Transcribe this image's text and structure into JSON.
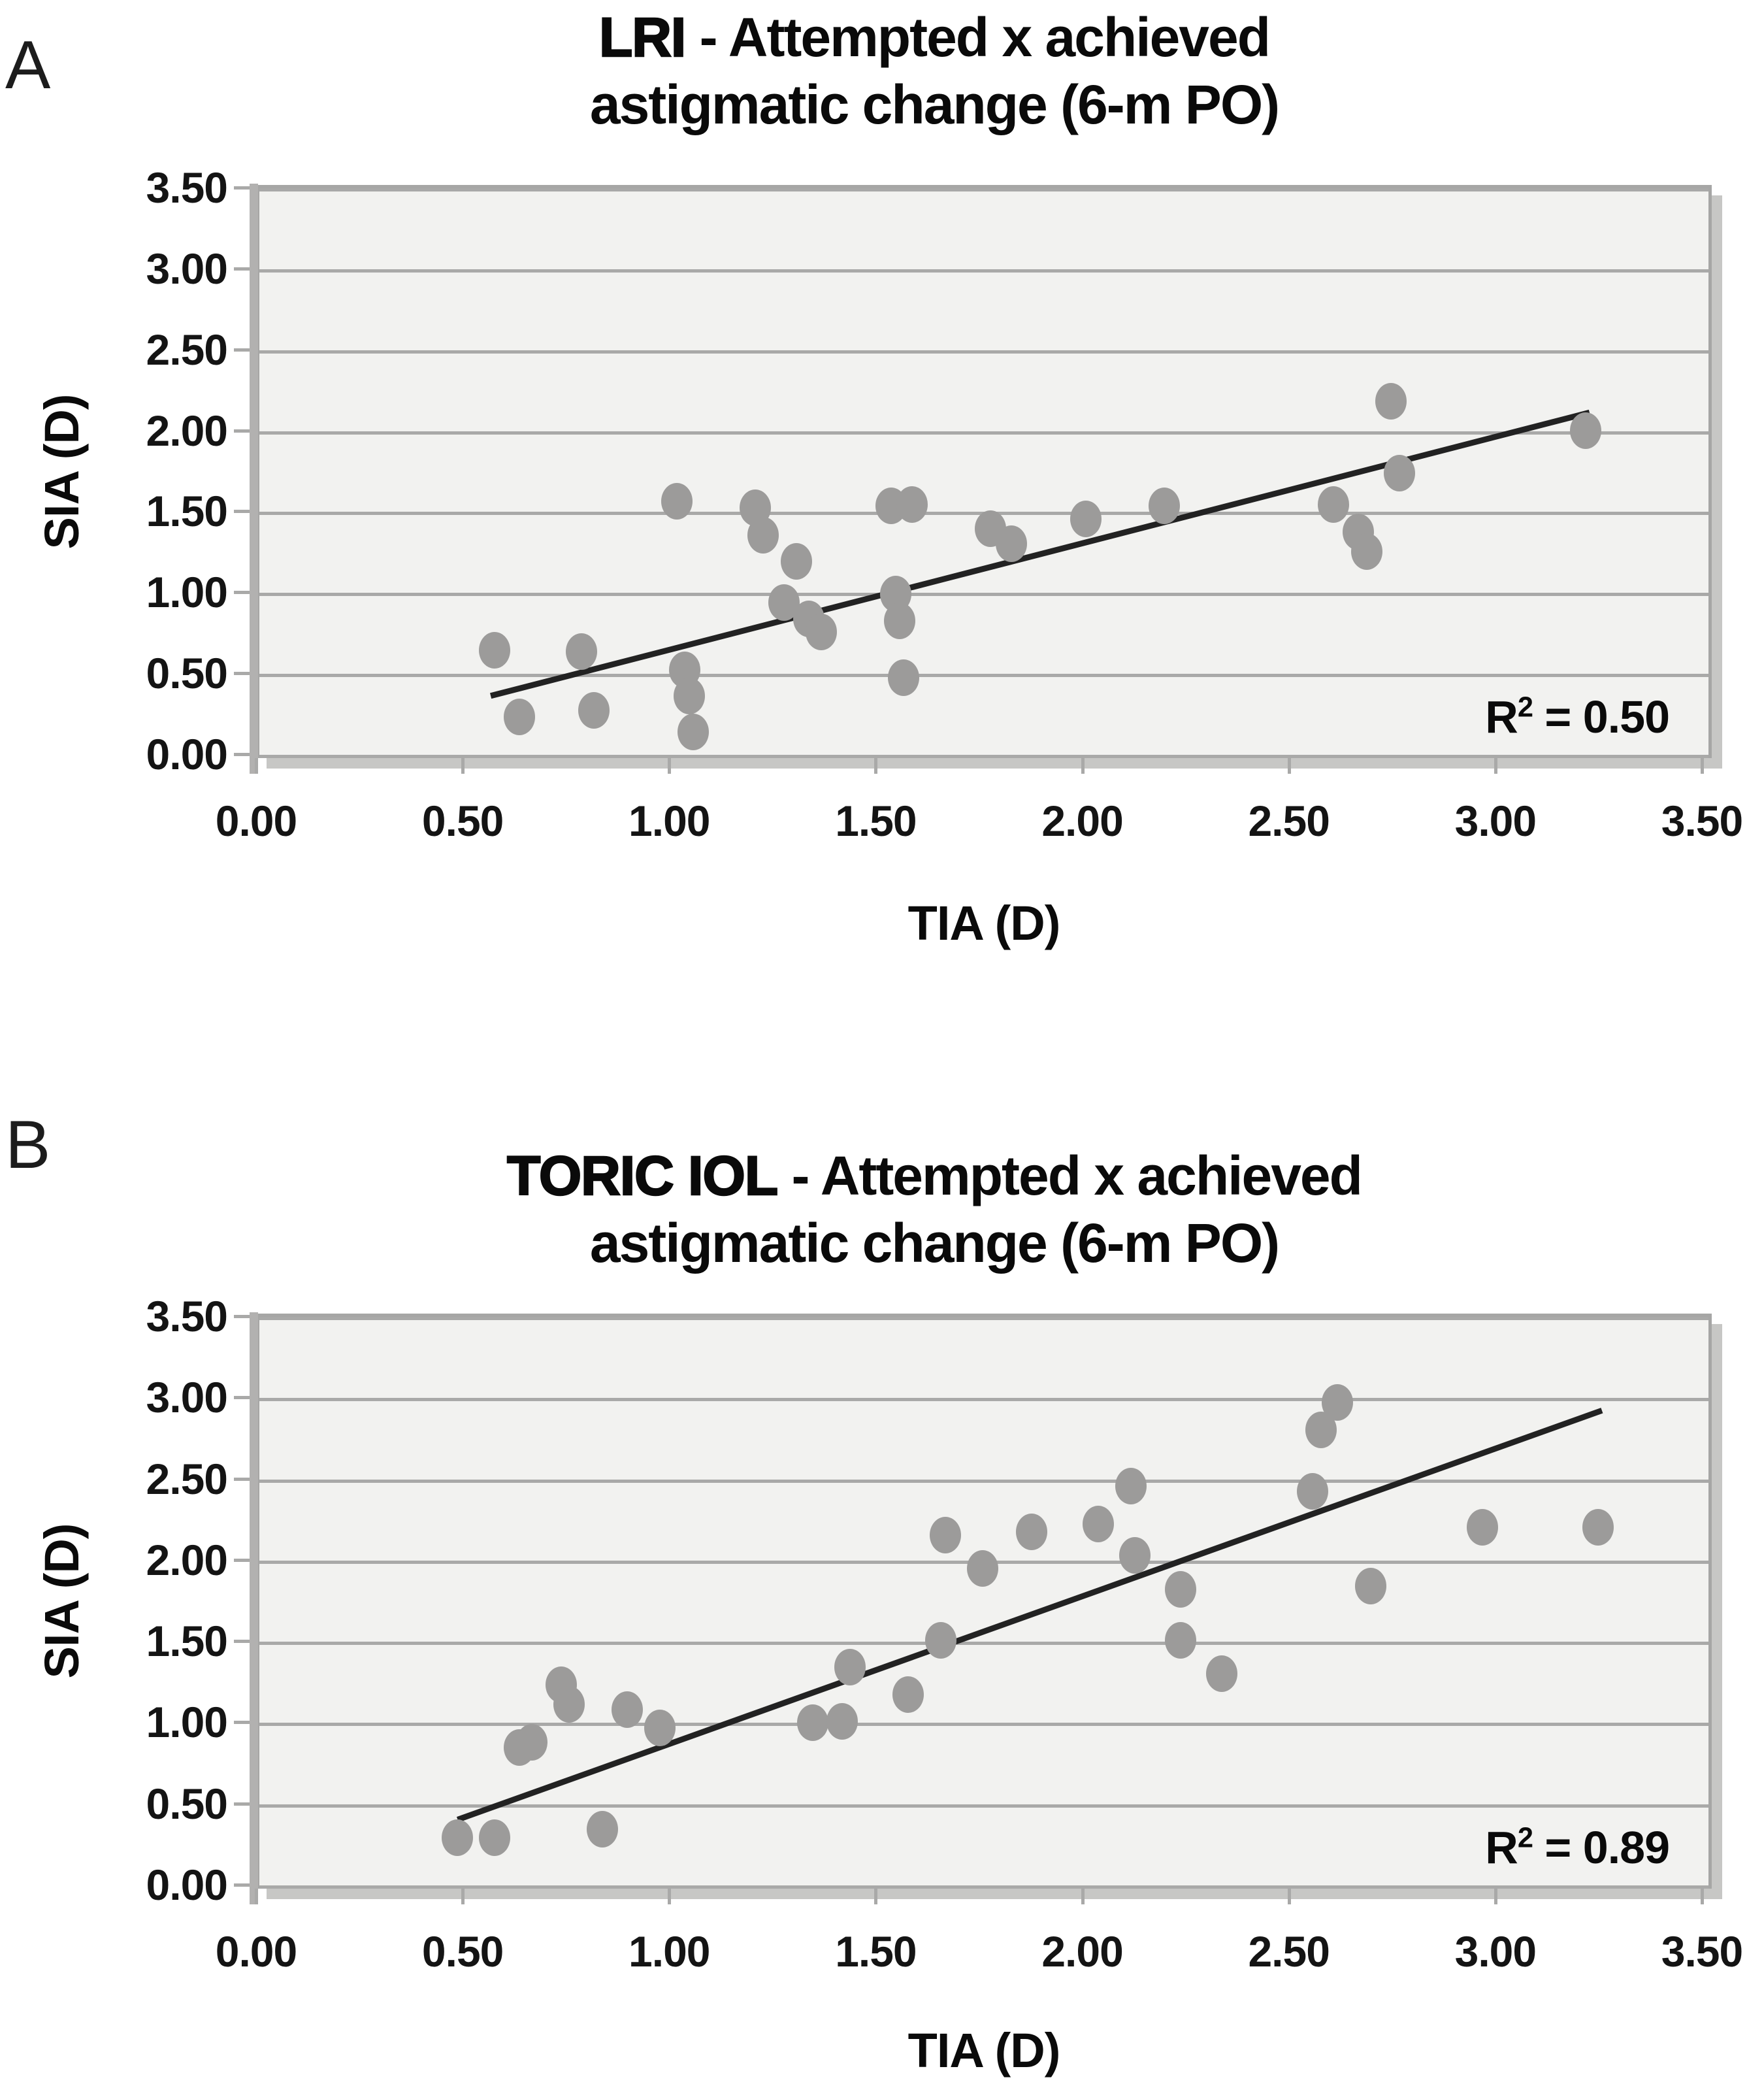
{
  "figure": {
    "panels": [
      {
        "panel_letter": "A",
        "title_strong": "LRI",
        "title_rest": " - Attempted x achieved",
        "title_line2": "astigmatic change (6-m PO)",
        "r2": {
          "base": "R",
          "sup": "2",
          "rest": " = 0.50"
        },
        "x_axis": {
          "label": "TIA (D)",
          "tick_labels": [
            "0.00",
            "0.50",
            "1.00",
            "1.50",
            "2.00",
            "2.50",
            "3.00",
            "3.50"
          ]
        },
        "y_axis": {
          "label": "SIA (D)",
          "tick_labels": [
            "3.50",
            "3.00",
            "2.50",
            "2.00",
            "1.50",
            "1.00",
            "0.50",
            "0.00"
          ]
        }
      },
      {
        "panel_letter": "B",
        "title_strong": "TORIC IOL",
        "title_rest": "  - Attempted x achieved",
        "title_line2": "astigmatic change (6-m PO)",
        "r2": {
          "base": "R",
          "sup": "2",
          "rest": " = 0.89"
        },
        "x_axis": {
          "label": "TIA (D)",
          "tick_labels": [
            "0.00",
            "0.50",
            "1.00",
            "1.50",
            "2.00",
            "2.50",
            "3.00",
            "3.50"
          ]
        },
        "y_axis": {
          "label": "SIA (D)",
          "tick_labels": [
            "3.50",
            "3.00",
            "2.50",
            "2.00",
            "1.50",
            "1.00",
            "0.50",
            "0.00"
          ]
        }
      }
    ],
    "colors": {
      "plot_fill": "#f2f2f0",
      "gridline": "#a9a9a8",
      "dot": "#9c9b9a",
      "trendline": "#222222",
      "shadow": "#c7c7c5",
      "text": "#0a0a0a"
    }
  },
  "chart_data": [
    {
      "type": "scatter",
      "panel": "A",
      "title": "LRI - Attempted x achieved astigmatic change (6-m PO)",
      "xlabel": "TIA (D)",
      "ylabel": "SIA (D)",
      "xlim": [
        0,
        3.5
      ],
      "ylim": [
        0,
        3.5
      ],
      "tick_step": 0.5,
      "grid": true,
      "r_squared": 0.5,
      "r_squared_text": "R² = 0.50",
      "points": [
        [
          0.57,
          0.68
        ],
        [
          0.63,
          0.27
        ],
        [
          0.78,
          0.67
        ],
        [
          0.81,
          0.31
        ],
        [
          1.01,
          1.59
        ],
        [
          1.03,
          0.56
        ],
        [
          1.04,
          0.4
        ],
        [
          1.05,
          0.18
        ],
        [
          1.2,
          1.55
        ],
        [
          1.22,
          1.38
        ],
        [
          1.27,
          0.97
        ],
        [
          1.3,
          1.22
        ],
        [
          1.33,
          0.87
        ],
        [
          1.36,
          0.79
        ],
        [
          1.53,
          1.56
        ],
        [
          1.58,
          1.57
        ],
        [
          1.54,
          1.02
        ],
        [
          1.55,
          0.86
        ],
        [
          1.56,
          0.51
        ],
        [
          1.77,
          1.42
        ],
        [
          1.82,
          1.33
        ],
        [
          2.0,
          1.48
        ],
        [
          2.19,
          1.56
        ],
        [
          2.6,
          1.57
        ],
        [
          2.66,
          1.4
        ],
        [
          2.68,
          1.28
        ],
        [
          2.74,
          2.2
        ],
        [
          2.76,
          1.76
        ],
        [
          3.21,
          2.02
        ]
      ],
      "trendline": {
        "x1": 0.56,
        "y1": 0.4,
        "x2": 3.22,
        "y2": 2.13
      }
    },
    {
      "type": "scatter",
      "panel": "B",
      "title": "TORIC IOL - Attempted x achieved astigmatic change (6-m PO)",
      "xlabel": "TIA (D)",
      "ylabel": "SIA (D)",
      "xlim": [
        0,
        3.5
      ],
      "ylim": [
        0,
        3.5
      ],
      "tick_step": 0.5,
      "grid": true,
      "r_squared": 0.89,
      "r_squared_text": "R² = 0.89",
      "points": [
        [
          0.48,
          0.33
        ],
        [
          0.57,
          0.33
        ],
        [
          0.63,
          0.88
        ],
        [
          0.66,
          0.91
        ],
        [
          0.73,
          1.26
        ],
        [
          0.75,
          1.14
        ],
        [
          0.83,
          0.38
        ],
        [
          0.89,
          1.11
        ],
        [
          0.97,
          1.0
        ],
        [
          1.34,
          1.03
        ],
        [
          1.41,
          1.04
        ],
        [
          1.43,
          1.37
        ],
        [
          1.57,
          1.2
        ],
        [
          1.65,
          1.53
        ],
        [
          1.66,
          2.17
        ],
        [
          1.75,
          1.97
        ],
        [
          1.87,
          2.19
        ],
        [
          2.03,
          2.24
        ],
        [
          2.11,
          2.47
        ],
        [
          2.12,
          2.05
        ],
        [
          2.23,
          1.84
        ],
        [
          2.23,
          1.53
        ],
        [
          2.33,
          1.33
        ],
        [
          2.55,
          2.44
        ],
        [
          2.57,
          2.81
        ],
        [
          2.61,
          2.98
        ],
        [
          2.69,
          1.86
        ],
        [
          2.96,
          2.22
        ],
        [
          3.24,
          2.22
        ]
      ],
      "trendline": {
        "x1": 0.48,
        "y1": 0.44,
        "x2": 3.25,
        "y2": 2.93
      }
    }
  ]
}
